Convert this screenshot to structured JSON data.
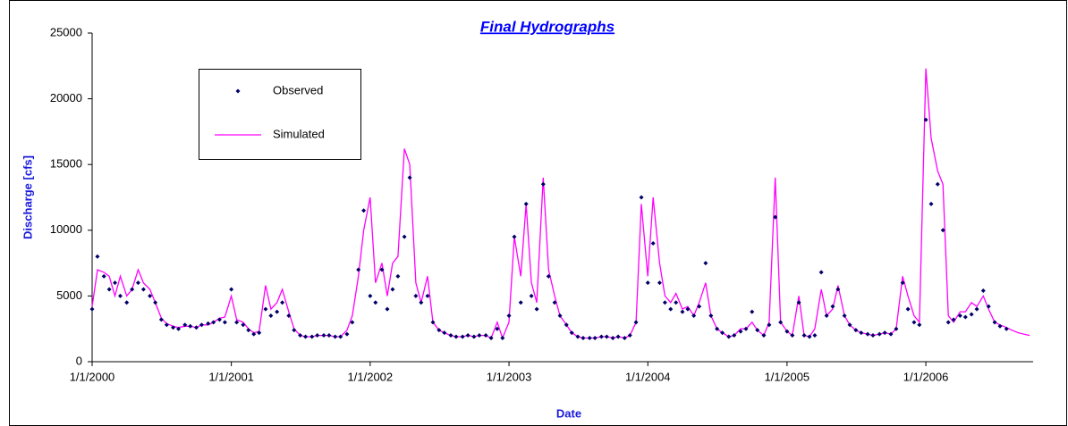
{
  "chart_data": {
    "type": "line",
    "title": "Final Hydrographs",
    "x_label": "Date",
    "y_label": "Discharge [cfs]",
    "x": [
      "1/1/2000",
      "1/15/2000",
      "2/1/2000",
      "2/15/2000",
      "3/1/2000",
      "3/15/2000",
      "4/1/2000",
      "4/15/2000",
      "5/1/2000",
      "5/15/2000",
      "6/1/2000",
      "6/15/2000",
      "7/1/2000",
      "7/15/2000",
      "8/1/2000",
      "8/15/2000",
      "9/1/2000",
      "9/15/2000",
      "10/1/2000",
      "10/15/2000",
      "11/1/2000",
      "11/15/2000",
      "12/1/2000",
      "12/15/2000",
      "1/1/2001",
      "1/15/2001",
      "2/1/2001",
      "2/15/2001",
      "3/1/2001",
      "3/15/2001",
      "4/1/2001",
      "4/15/2001",
      "5/1/2001",
      "5/15/2001",
      "6/1/2001",
      "6/15/2001",
      "7/1/2001",
      "7/15/2001",
      "8/1/2001",
      "8/15/2001",
      "9/1/2001",
      "9/15/2001",
      "10/1/2001",
      "10/15/2001",
      "11/1/2001",
      "11/15/2001",
      "12/1/2001",
      "12/15/2001",
      "1/1/2002",
      "1/15/2002",
      "2/1/2002",
      "2/15/2002",
      "3/1/2002",
      "3/15/2002",
      "4/1/2002",
      "4/15/2002",
      "5/1/2002",
      "5/15/2002",
      "6/1/2002",
      "6/15/2002",
      "7/1/2002",
      "7/15/2002",
      "8/1/2002",
      "8/15/2002",
      "9/1/2002",
      "9/15/2002",
      "10/1/2002",
      "10/15/2002",
      "11/1/2002",
      "11/15/2002",
      "12/1/2002",
      "12/15/2002",
      "1/1/2003",
      "1/15/2003",
      "2/1/2003",
      "2/15/2003",
      "3/1/2003",
      "3/15/2003",
      "4/1/2003",
      "4/15/2003",
      "5/1/2003",
      "5/15/2003",
      "6/1/2003",
      "6/15/2003",
      "7/1/2003",
      "7/15/2003",
      "8/1/2003",
      "8/15/2003",
      "9/1/2003",
      "9/15/2003",
      "10/1/2003",
      "10/15/2003",
      "11/1/2003",
      "11/15/2003",
      "12/1/2003",
      "12/15/2003",
      "1/1/2004",
      "1/15/2004",
      "2/1/2004",
      "2/15/2004",
      "3/1/2004",
      "3/15/2004",
      "4/1/2004",
      "4/15/2004",
      "5/1/2004",
      "5/15/2004",
      "6/1/2004",
      "6/15/2004",
      "7/1/2004",
      "7/15/2004",
      "8/1/2004",
      "8/15/2004",
      "9/1/2004",
      "9/15/2004",
      "10/1/2004",
      "10/15/2004",
      "11/1/2004",
      "11/15/2004",
      "12/1/2004",
      "12/15/2004",
      "1/1/2005",
      "1/15/2005",
      "2/1/2005",
      "2/15/2005",
      "3/1/2005",
      "3/15/2005",
      "4/1/2005",
      "4/15/2005",
      "5/1/2005",
      "5/15/2005",
      "6/1/2005",
      "6/15/2005",
      "7/1/2005",
      "7/15/2005",
      "8/1/2005",
      "8/15/2005",
      "9/1/2005",
      "9/15/2005",
      "10/1/2005",
      "10/15/2005",
      "11/1/2005",
      "11/15/2005",
      "12/1/2005",
      "12/15/2005",
      "1/1/2006",
      "1/15/2006",
      "2/1/2006",
      "2/15/2006",
      "3/1/2006",
      "3/15/2006",
      "4/1/2006",
      "4/15/2006",
      "5/1/2006",
      "5/15/2006",
      "6/1/2006",
      "6/15/2006",
      "7/1/2006",
      "7/15/2006",
      "8/1/2006",
      "8/15/2006",
      "9/1/2006",
      "9/15/2006",
      "10/1/2006"
    ],
    "series": [
      {
        "name": "Observed",
        "color": "#000066",
        "marker": "diamond",
        "values": [
          4000,
          8000,
          6500,
          5500,
          6000,
          5000,
          4500,
          5500,
          6000,
          5500,
          5000,
          4500,
          3200,
          2800,
          2600,
          2500,
          2800,
          2700,
          2600,
          2800,
          2900,
          3000,
          3200,
          3000,
          5500,
          3000,
          2800,
          2400,
          2100,
          2200,
          4000,
          3500,
          3800,
          4500,
          3500,
          2400,
          2000,
          1900,
          1900,
          2000,
          2000,
          2000,
          1900,
          1900,
          2100,
          3000,
          7000,
          11500,
          5000,
          4500,
          7000,
          4000,
          5500,
          6500,
          9500,
          14000,
          5000,
          4500,
          5000,
          3000,
          2400,
          2200,
          2000,
          1900,
          1900,
          2000,
          1900,
          2000,
          2000,
          1800,
          2500,
          1800,
          3500,
          9500,
          4500,
          12000,
          5000,
          4000,
          13500,
          6500,
          4500,
          3500,
          2800,
          2200,
          1900,
          1800,
          1800,
          1800,
          1900,
          1900,
          1800,
          1900,
          1800,
          2000,
          3000,
          12500,
          6000,
          9000,
          6000,
          4500,
          4000,
          4500,
          3800,
          4000,
          3500,
          4200,
          7500,
          3500,
          2500,
          2200,
          1900,
          2000,
          2300,
          2500,
          3800,
          2400,
          2000,
          2800,
          11000,
          3000,
          2300,
          2000,
          4500,
          2000,
          1900,
          2000,
          6800,
          3500,
          4200,
          5500,
          3500,
          2800,
          2400,
          2200,
          2100,
          2000,
          2100,
          2200,
          2100,
          2500,
          6000,
          4000,
          3000,
          2800,
          18400,
          12000,
          13500,
          10000,
          3000,
          3200,
          3500,
          3400,
          3600,
          4000,
          5400,
          4200,
          3000,
          2700,
          2500,
          null,
          null,
          null,
          null
        ]
      },
      {
        "name": "Simulated",
        "color": "#ff00ff",
        "marker": "line",
        "values": [
          4200,
          7000,
          6800,
          6500,
          5000,
          6500,
          5000,
          5500,
          7000,
          6000,
          5500,
          4500,
          3300,
          2900,
          2700,
          2600,
          2700,
          2700,
          2600,
          2800,
          2800,
          3000,
          3300,
          3400,
          5000,
          3200,
          3000,
          2500,
          2200,
          2300,
          5800,
          4000,
          4500,
          5500,
          3800,
          2500,
          2000,
          1900,
          1900,
          2000,
          2000,
          2000,
          1900,
          1900,
          2400,
          3500,
          6500,
          10000,
          12500,
          6000,
          7500,
          5000,
          7500,
          8000,
          16200,
          15000,
          6000,
          4500,
          6500,
          3000,
          2400,
          2200,
          2000,
          1900,
          1900,
          2000,
          1900,
          2000,
          2000,
          1800,
          3000,
          1800,
          3000,
          9500,
          6500,
          12000,
          6000,
          4500,
          14000,
          7000,
          5000,
          3500,
          2800,
          2200,
          1900,
          1800,
          1800,
          1800,
          1900,
          1900,
          1800,
          1900,
          1800,
          2000,
          3000,
          12000,
          6500,
          12500,
          7500,
          5000,
          4500,
          5200,
          4000,
          4200,
          3500,
          4500,
          6000,
          3500,
          2500,
          2200,
          1900,
          2000,
          2500,
          2500,
          3000,
          2400,
          2000,
          3000,
          14000,
          3000,
          2300,
          2000,
          5000,
          2000,
          1900,
          2500,
          5500,
          3500,
          4000,
          5800,
          3500,
          2800,
          2400,
          2200,
          2100,
          2000,
          2100,
          2200,
          2100,
          2500,
          6500,
          5000,
          3500,
          3000,
          22300,
          17000,
          14500,
          13500,
          3500,
          3000,
          3800,
          3800,
          4500,
          4200,
          5000,
          4000,
          3000,
          2800,
          2600,
          2400,
          2200,
          2100,
          2000
        ]
      }
    ],
    "xlim": [
      "1/1/2000",
      "10/10/2006"
    ],
    "xticks": [
      "1/1/2000",
      "1/1/2001",
      "1/1/2002",
      "1/1/2003",
      "1/1/2004",
      "1/1/2005",
      "1/1/2006"
    ],
    "ylim": [
      0,
      25000
    ],
    "yticks": [
      0,
      5000,
      10000,
      15000,
      20000,
      25000
    ],
    "grid": false
  }
}
